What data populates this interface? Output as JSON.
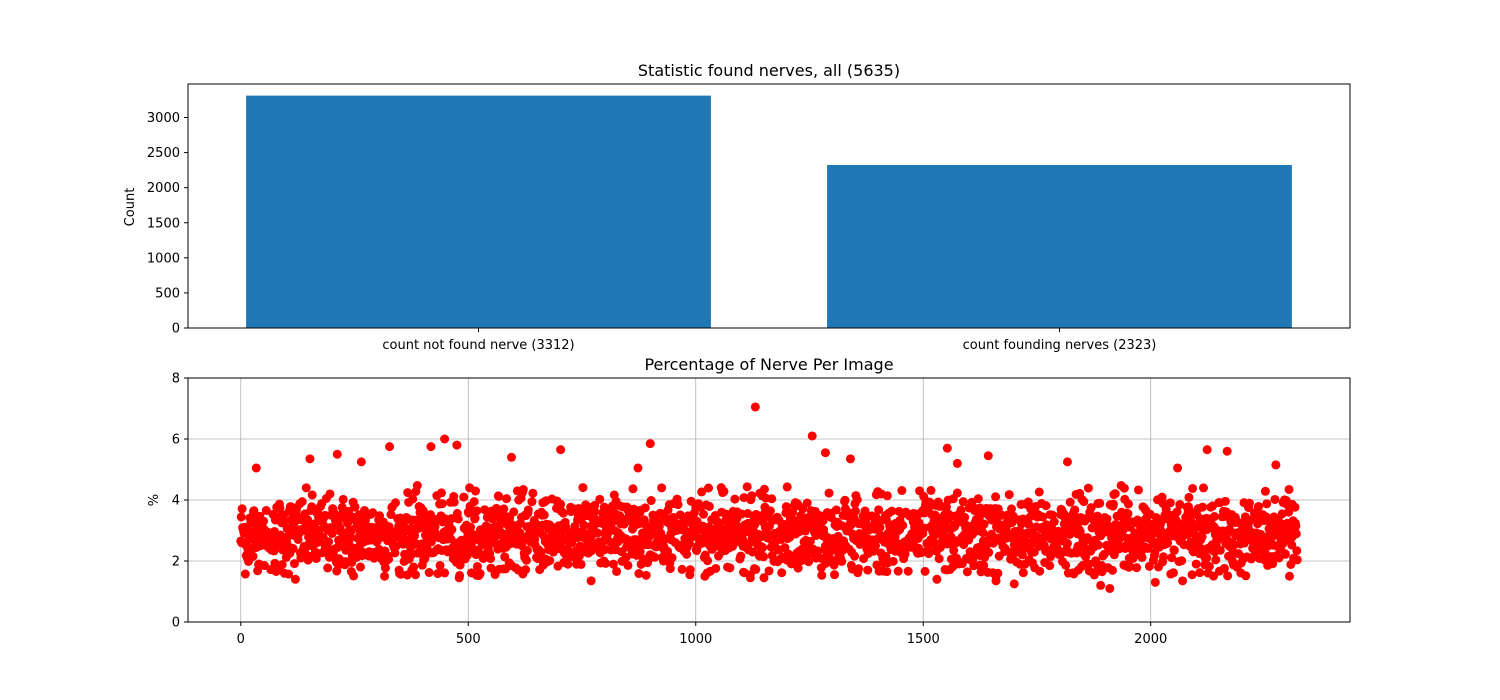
{
  "chart_data": [
    {
      "type": "bar",
      "title": "Statistic found nerves, all (5635)",
      "xlabel": "",
      "ylabel": "Count",
      "categories": [
        "count not found nerve (3312)",
        "count founding nerves (2323)"
      ],
      "values": [
        3312,
        2323
      ],
      "ylim": [
        0,
        3477.6
      ],
      "yticks": [
        0,
        500,
        1000,
        1500,
        2000,
        2500,
        3000
      ],
      "grid": false,
      "color": "#1f77b4"
    },
    {
      "type": "scatter",
      "title": "Percentage of Nerve Per Image",
      "xlabel": "",
      "ylabel": "%",
      "xlim": [
        -116,
        2438
      ],
      "ylim": [
        0,
        8
      ],
      "xticks": [
        0,
        500,
        1000,
        1500,
        2000
      ],
      "yticks": [
        0,
        2,
        4,
        6,
        8
      ],
      "grid": true,
      "color": "#ff0000",
      "n_points": 2323,
      "typical_range": [
        1.5,
        4.5
      ],
      "outliers": [
        {
          "x": 34,
          "y": 5.05
        },
        {
          "x": 152,
          "y": 5.35
        },
        {
          "x": 212,
          "y": 5.5
        },
        {
          "x": 265,
          "y": 5.25
        },
        {
          "x": 327,
          "y": 5.75
        },
        {
          "x": 418,
          "y": 5.75
        },
        {
          "x": 448,
          "y": 6.0
        },
        {
          "x": 475,
          "y": 5.8
        },
        {
          "x": 595,
          "y": 5.4
        },
        {
          "x": 703,
          "y": 5.65
        },
        {
          "x": 873,
          "y": 5.05
        },
        {
          "x": 900,
          "y": 5.85
        },
        {
          "x": 1131,
          "y": 7.05
        },
        {
          "x": 1256,
          "y": 6.1
        },
        {
          "x": 1285,
          "y": 5.55
        },
        {
          "x": 1340,
          "y": 5.35
        },
        {
          "x": 1553,
          "y": 5.7
        },
        {
          "x": 1575,
          "y": 5.2
        },
        {
          "x": 1643,
          "y": 5.45
        },
        {
          "x": 1817,
          "y": 5.25
        },
        {
          "x": 2059,
          "y": 5.05
        },
        {
          "x": 2124,
          "y": 5.65
        },
        {
          "x": 2168,
          "y": 5.6
        },
        {
          "x": 2275,
          "y": 5.15
        },
        {
          "x": 40,
          "y": 1.9
        },
        {
          "x": 120,
          "y": 1.4
        },
        {
          "x": 480,
          "y": 1.45
        },
        {
          "x": 770,
          "y": 1.35
        },
        {
          "x": 1020,
          "y": 1.5
        },
        {
          "x": 1120,
          "y": 1.45
        },
        {
          "x": 1150,
          "y": 1.45
        },
        {
          "x": 1530,
          "y": 1.4
        },
        {
          "x": 1660,
          "y": 1.35
        },
        {
          "x": 1700,
          "y": 1.25
        },
        {
          "x": 1890,
          "y": 1.2
        },
        {
          "x": 1910,
          "y": 1.1
        },
        {
          "x": 2010,
          "y": 1.3
        },
        {
          "x": 2070,
          "y": 1.35
        },
        {
          "x": 2305,
          "y": 1.5
        }
      ]
    }
  ]
}
